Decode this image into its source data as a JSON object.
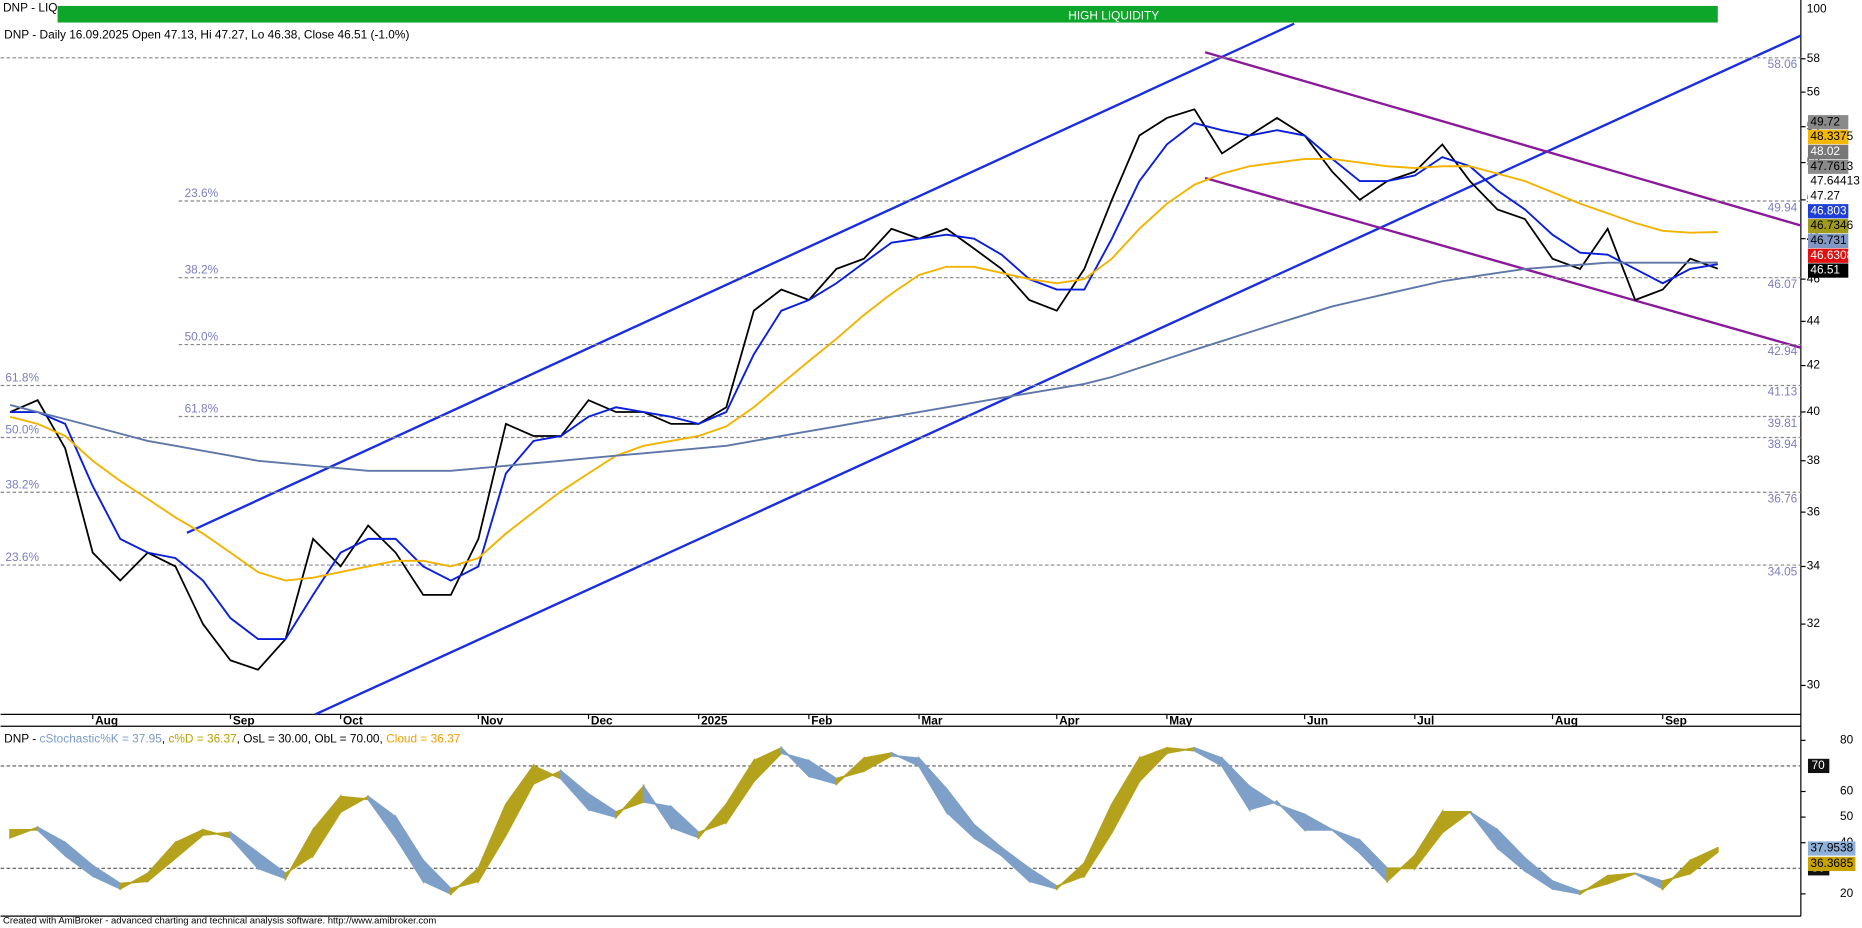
{
  "header": {
    "symbol": "DNP - LIQ",
    "liquidity": "HIGH LIQUIDITY",
    "liquidity_scale": 100,
    "info": "DNP - Daily 16.09.2025 Open 47.13, Hi 47.27, Lo 46.38, Close 46.51 (-1.0%)"
  },
  "chart_data": [
    {
      "type": "line",
      "log_scale": true,
      "ylim": [
        29.1,
        61.7
      ],
      "yticks": [
        30,
        32,
        34,
        36,
        38,
        40,
        42,
        44,
        46,
        48,
        50,
        52,
        54,
        56,
        58
      ],
      "categories": [
        null,
        null,
        null,
        "Aug",
        null,
        null,
        null,
        null,
        "Sep",
        null,
        null,
        null,
        "Oct",
        null,
        null,
        null,
        null,
        "Nov",
        null,
        null,
        null,
        "Dec",
        null,
        null,
        null,
        "2025",
        null,
        null,
        null,
        "Feb",
        null,
        null,
        null,
        "Mar",
        null,
        null,
        null,
        null,
        "Apr",
        null,
        null,
        null,
        "May",
        null,
        null,
        null,
        null,
        "Jun",
        null,
        null,
        null,
        "Jul",
        null,
        null,
        null,
        null,
        "Aug",
        null,
        null,
        null,
        "Sep",
        null,
        null
      ],
      "series": [
        {
          "color": "#000000",
          "values": [
            40,
            40.5,
            38.5,
            34.5,
            33.5,
            34.5,
            34,
            32,
            30.8,
            30.5,
            31.5,
            35,
            34,
            35.5,
            34.5,
            33,
            33,
            35,
            39.5,
            39,
            39,
            40.5,
            40,
            40,
            39.5,
            39.5,
            40.2,
            44.5,
            45.5,
            45,
            46.5,
            47,
            48.5,
            48,
            48.5,
            47.5,
            46.5,
            45,
            44.5,
            46.5,
            50,
            53.5,
            54.5,
            55,
            52.5,
            53.5,
            54.5,
            53.5,
            51.5,
            50,
            51,
            51.5,
            53,
            51,
            49.5,
            49,
            47,
            46.5,
            48.5,
            45,
            45.5,
            47,
            46.51
          ]
        },
        {
          "color": "#0a1fd8",
          "values": [
            40,
            40,
            39.5,
            37,
            35,
            34.5,
            34.3,
            33.5,
            32.2,
            31.5,
            31.5,
            33,
            34.5,
            35,
            35,
            34,
            33.5,
            34,
            37.5,
            38.8,
            39,
            39.8,
            40.2,
            40,
            39.8,
            39.5,
            40,
            42.5,
            44.5,
            45,
            45.8,
            46.8,
            47.8,
            48,
            48.2,
            48,
            47.2,
            46,
            45.5,
            45.5,
            48,
            51,
            53,
            54.2,
            53.8,
            53.5,
            53.8,
            53.5,
            52.2,
            51,
            51,
            51.3,
            52.3,
            51.8,
            50.5,
            49.5,
            48.2,
            47.3,
            47.2,
            46.5,
            45.8,
            46.5,
            46.731
          ]
        },
        {
          "color": "#f2b300",
          "values": [
            39.8,
            39.5,
            39,
            38,
            37.2,
            36.5,
            35.8,
            35.2,
            34.5,
            33.8,
            33.5,
            33.6,
            33.8,
            34,
            34.2,
            34.2,
            34,
            34.3,
            35.2,
            36,
            36.8,
            37.5,
            38.2,
            38.6,
            38.8,
            39,
            39.4,
            40.2,
            41.2,
            42.2,
            43.2,
            44.3,
            45.3,
            46.2,
            46.6,
            46.6,
            46.3,
            46,
            45.8,
            46,
            47,
            48.5,
            49.8,
            50.8,
            51.4,
            51.8,
            52,
            52.2,
            52.2,
            52,
            51.8,
            51.7,
            51.8,
            51.8,
            51.4,
            51,
            50.4,
            49.8,
            49.3,
            48.8,
            48.4,
            48.3,
            48.3375
          ]
        },
        {
          "color": "#5f77a8",
          "values": [
            40.3,
            40,
            39.7,
            39.4,
            39.1,
            38.8,
            38.6,
            38.4,
            38.2,
            38,
            37.9,
            37.8,
            37.7,
            37.6,
            37.6,
            37.6,
            37.6,
            37.7,
            37.8,
            37.9,
            38,
            38.1,
            38.2,
            38.3,
            38.4,
            38.5,
            38.6,
            38.8,
            39,
            39.2,
            39.4,
            39.6,
            39.8,
            40,
            40.2,
            40.4,
            40.6,
            40.8,
            41,
            41.2,
            41.5,
            41.9,
            42.3,
            42.7,
            43.1,
            43.5,
            43.9,
            44.3,
            44.7,
            45,
            45.3,
            45.6,
            45.9,
            46.1,
            46.3,
            46.5,
            46.6,
            46.7,
            46.8,
            46.8,
            46.8,
            46.8,
            46.803
          ]
        }
      ],
      "top_level": 58.06,
      "fib_sets": [
        {
          "levels": [
            {
              "pct": "23.6%",
              "value": 49.94
            },
            {
              "pct": "38.2%",
              "value": 46.07
            },
            {
              "pct": "50.0%",
              "value": 42.94
            },
            {
              "pct": "61.8%",
              "value": 39.81
            }
          ]
        },
        {
          "levels": [
            {
              "pct": "61.8%",
              "value": 41.13
            },
            {
              "pct": "50.0%",
              "value": 38.94
            },
            {
              "pct": "38.2%",
              "value": 36.76
            },
            {
              "pct": "23.6%",
              "value": 34.05
            }
          ]
        }
      ],
      "price_labels": [
        {
          "value": 49.72,
          "color": "#8a8a8a"
        },
        {
          "value": 48.3375,
          "color": "#f5b800"
        },
        {
          "value": 48.02,
          "color": "#777777"
        },
        {
          "value": 47.7613,
          "color": "#8a8a8a"
        },
        {
          "value": 47.64413,
          "color": "#ffffff"
        },
        {
          "value": 47.27,
          "color": "#ffffff"
        },
        {
          "value": 46.803,
          "color": "#1d3fd6"
        },
        {
          "value": 46.7346,
          "color": "#a19b1c"
        },
        {
          "value": 46.731,
          "color": "#7f97c2"
        },
        {
          "value": 46.6308,
          "color": "#e01010"
        },
        {
          "value": 46.51,
          "color": "#000000"
        }
      ]
    },
    {
      "type": "cloud",
      "title_parts": [
        {
          "text": "DNP - ",
          "color": "#000000"
        },
        {
          "text": "cStochastic%K = 37.95",
          "color": "#7b9bc8"
        },
        {
          "text": ", ",
          "color": "#000000"
        },
        {
          "text": "c%D = 36.37",
          "color": "#b89f00"
        },
        {
          "text": ", OsL = 30.00, ObL = 70.00, ",
          "color": "#000000"
        },
        {
          "text": "Cloud = 36.37",
          "color": "#f0a000"
        }
      ],
      "ylim": [
        11.3,
        85.5
      ],
      "yticks": [
        20,
        40,
        50,
        60,
        80
      ],
      "levels": [
        30,
        70
      ],
      "k": [
        45,
        45,
        35,
        27,
        22,
        28,
        40,
        45,
        42,
        30,
        26,
        45,
        58,
        57,
        42,
        25,
        20,
        30,
        55,
        70,
        65,
        53,
        50,
        62,
        46,
        42,
        55,
        72,
        77,
        66,
        63,
        73,
        75,
        70,
        52,
        42,
        35,
        25,
        22,
        32,
        55,
        73,
        77,
        76,
        70,
        53,
        56,
        45,
        45,
        36,
        25,
        35,
        52,
        52,
        38,
        29,
        22,
        20,
        27,
        28,
        22,
        33,
        37.95
      ],
      "d": [
        42,
        46,
        40,
        31,
        24,
        25,
        34,
        43,
        44,
        36,
        28,
        35,
        52,
        58,
        50,
        33,
        22,
        25,
        43,
        63,
        68,
        59,
        52,
        56,
        54,
        44,
        48,
        64,
        75,
        72,
        65,
        68,
        74,
        73,
        61,
        47,
        38,
        30,
        23,
        27,
        44,
        64,
        75,
        77,
        73,
        62,
        55,
        51,
        45,
        41,
        30,
        30,
        44,
        52,
        45,
        34,
        25,
        21,
        24,
        28,
        25,
        28,
        36.37
      ],
      "up_color": "#b5a21c",
      "down_color": "#7ea0c8",
      "end_labels": [
        {
          "value": 37.9538,
          "color": "#8fb0d8"
        },
        {
          "value": 36.3685,
          "color": "#c8a400"
        }
      ]
    }
  ],
  "footer": "Created with AmiBroker - advanced charting and technical analysis software. http://www.amibroker.com"
}
